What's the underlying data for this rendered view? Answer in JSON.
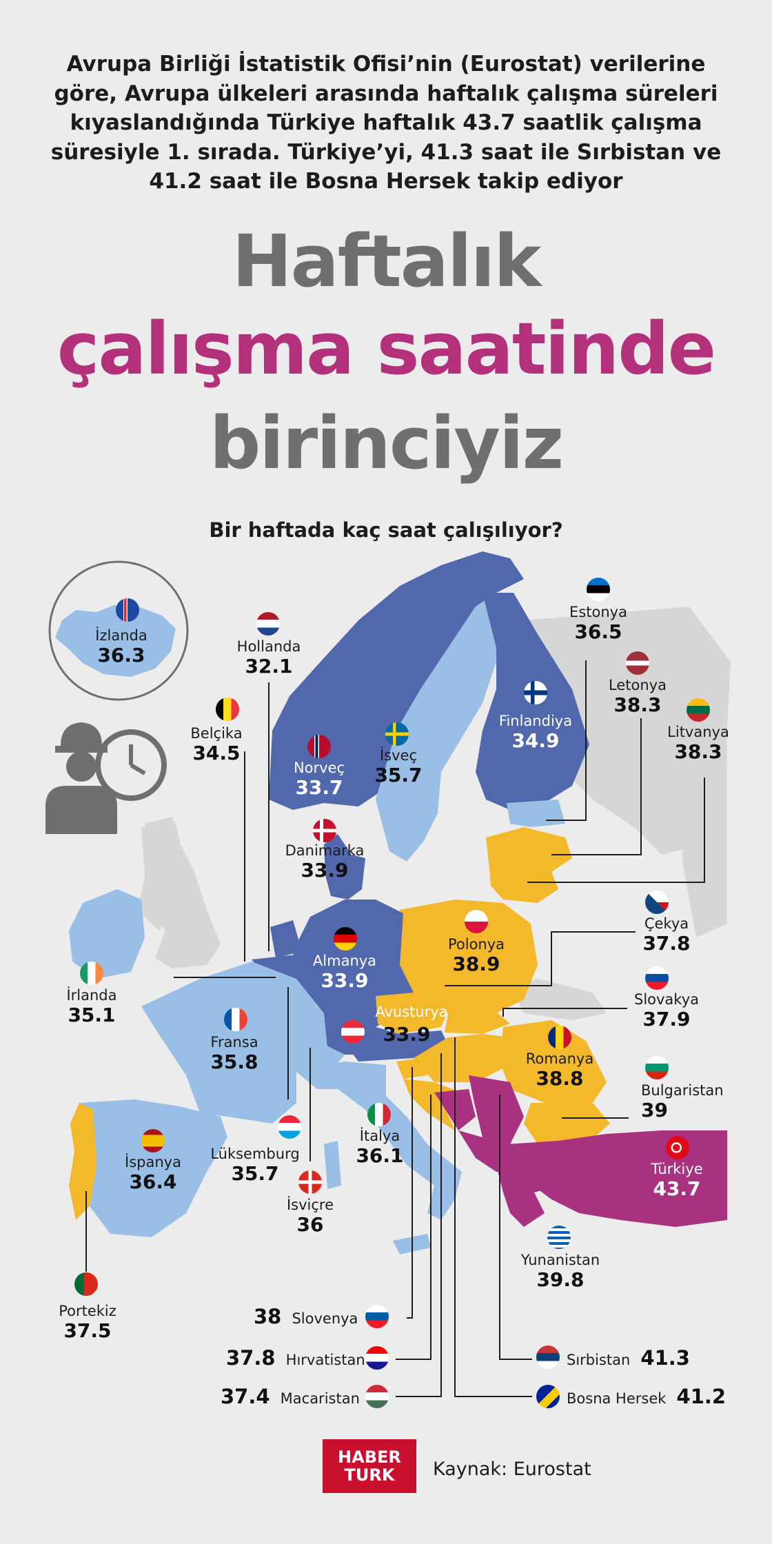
{
  "intro_lines": [
    "Avrupa Birliği İstatistik Ofisi’nin (Eurostat) verilerine",
    "göre, Avrupa ülkeleri arasında haftalık çalışma süreleri",
    "kıyaslandığında Türkiye haftalık 43.7 saatlik çalışma",
    "süresiyle 1. sırada. Türkiye’yi, 41.3 saat ile Sırbistan ve",
    "41.2 saat ile Bosna Hersek takip ediyor"
  ],
  "title": {
    "line1": "Haftalık",
    "line2": "çalışma saatinde",
    "line3": "birinciyiz"
  },
  "subtitle": "Bir haftada kaç saat çalışılıyor?",
  "colors": {
    "light_blue": "#99bfe6",
    "dark_blue": "#5268ad",
    "yellow": "#f4b92a",
    "magenta": "#a8327f",
    "title_magenta": "#b3317a",
    "title_gray": "#6f6f6f"
  },
  "countries": {
    "izlanda": {
      "name": "İzlanda",
      "value": "36.3"
    },
    "hollanda": {
      "name": "Hollanda",
      "value": "32.1"
    },
    "belcika": {
      "name": "Belçika",
      "value": "34.5"
    },
    "norvec": {
      "name": "Norveç",
      "value": "33.7"
    },
    "isvec": {
      "name": "İsveç",
      "value": "35.7"
    },
    "finlandiya": {
      "name": "Finlandiya",
      "value": "34.9"
    },
    "estonya": {
      "name": "Estonya",
      "value": "36.5"
    },
    "letonya": {
      "name": "Letonya",
      "value": "38.3"
    },
    "litvanya": {
      "name": "Litvanya",
      "value": "38.3"
    },
    "danimarka": {
      "name": "Danimarka",
      "value": "33.9"
    },
    "irlanda": {
      "name": "İrlanda",
      "value": "35.1"
    },
    "almanya": {
      "name": "Almanya",
      "value": "33.9"
    },
    "polonya": {
      "name": "Polonya",
      "value": "38.9"
    },
    "cekya": {
      "name": "Çekya",
      "value": "37.8"
    },
    "slovakya": {
      "name": "Slovakya",
      "value": "37.9"
    },
    "avusturya": {
      "name": "Avusturya",
      "value": "33.9"
    },
    "fransa": {
      "name": "Fransa",
      "value": "35.8"
    },
    "romanya": {
      "name": "Romanya",
      "value": "38.8"
    },
    "bulgaristan": {
      "name": "Bulgaristan",
      "value": "39"
    },
    "ispanya": {
      "name": "İspanya",
      "value": "36.4"
    },
    "luksemburg": {
      "name": "Lüksemburg",
      "value": "35.7"
    },
    "italya": {
      "name": "İtalya",
      "value": "36.1"
    },
    "isvicre": {
      "name": "İsviçre",
      "value": "36"
    },
    "turkiye": {
      "name": "Türkiye",
      "value": "43.7"
    },
    "yunanistan": {
      "name": "Yunanistan",
      "value": "39.8"
    },
    "portekiz": {
      "name": "Portekiz",
      "value": "37.5"
    },
    "slovenya": {
      "name": "Slovenya",
      "value": "38"
    },
    "hirvatistan": {
      "name": "Hırvatistan",
      "value": "37.8"
    },
    "macaristan": {
      "name": "Macaristan",
      "value": "37.4"
    },
    "sirbistan": {
      "name": "Sırbistan",
      "value": "41.3"
    },
    "bosna": {
      "name": "Bosna Hersek",
      "value": "41.2"
    }
  },
  "logo": {
    "line1": "HABER",
    "line2": "TURK"
  },
  "source": "Kaynak: Eurostat"
}
